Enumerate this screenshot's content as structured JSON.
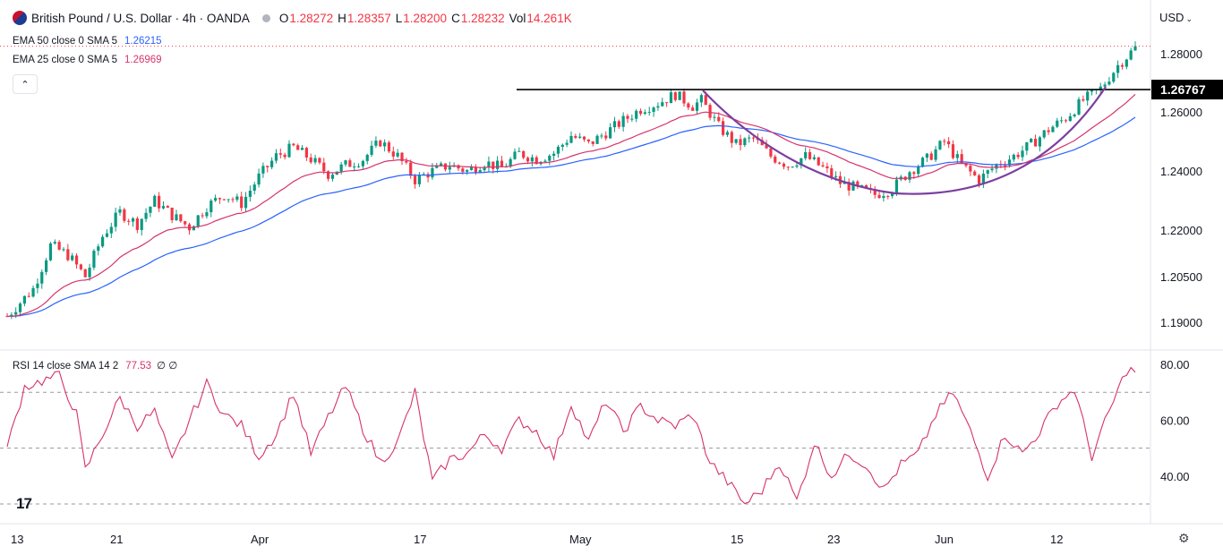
{
  "header": {
    "symbol": "British Pound / U.S. Dollar · 4h · OANDA",
    "open_key": "O",
    "open": "1.28272",
    "high_key": "H",
    "high": "1.28357",
    "low_key": "L",
    "low": "1.28200",
    "close_key": "C",
    "close": "1.28232",
    "vol_key": "Vol",
    "vol": "14.261K",
    "currency": "USD"
  },
  "indicators": {
    "ema50": {
      "label": "EMA 50 close 0 SMA 5",
      "value": "1.26215",
      "color": "#2962ff"
    },
    "ema25": {
      "label": "EMA 25 close 0 SMA 5",
      "value": "1.26969",
      "color": "#d6336c"
    },
    "rsi": {
      "label": "RSI 14 close SMA 14 2",
      "value": "77.53",
      "extra": "∅ ∅",
      "color": "#d6336c"
    }
  },
  "colors": {
    "up": "#089981",
    "down": "#f23645",
    "pattern": "#7b3fa0",
    "resistance": "#000000"
  },
  "chart_data": [
    {
      "type": "candlestick",
      "title": "British Pound / U.S. Dollar · 4h · OANDA",
      "y_ticks": [
        "1.28000",
        "1.26000",
        "1.24000",
        "1.22000",
        "1.20500",
        "1.19000"
      ],
      "x_ticks": [
        "13",
        "21",
        "Apr",
        "17",
        "May",
        "15",
        "23",
        "Jun",
        "12"
      ],
      "resistance_level": "1.26767",
      "annotations": [
        "horizontal resistance line at 1.26767",
        "cup (rounded bottom) pattern curve"
      ],
      "ema_series": [
        {
          "name": "EMA 50",
          "current": 1.26215
        },
        {
          "name": "EMA 25",
          "current": 1.26969
        }
      ],
      "close_path": [
        [
          0,
          1.192
        ],
        [
          6,
          1.201
        ],
        [
          10,
          1.215
        ],
        [
          14,
          1.212
        ],
        [
          18,
          1.205
        ],
        [
          22,
          1.218
        ],
        [
          26,
          1.226
        ],
        [
          30,
          1.222
        ],
        [
          34,
          1.23
        ],
        [
          38,
          1.225
        ],
        [
          42,
          1.221
        ],
        [
          46,
          1.228
        ],
        [
          50,
          1.232
        ],
        [
          54,
          1.229
        ],
        [
          58,
          1.238
        ],
        [
          62,
          1.245
        ],
        [
          66,
          1.248
        ],
        [
          70,
          1.244
        ],
        [
          74,
          1.239
        ],
        [
          78,
          1.242
        ],
        [
          82,
          1.244
        ],
        [
          86,
          1.25
        ],
        [
          90,
          1.245
        ],
        [
          94,
          1.237
        ],
        [
          98,
          1.24
        ],
        [
          102,
          1.242
        ],
        [
          106,
          1.24
        ],
        [
          110,
          1.243
        ],
        [
          114,
          1.241
        ],
        [
          118,
          1.246
        ],
        [
          122,
          1.244
        ],
        [
          126,
          1.246
        ],
        [
          130,
          1.252
        ],
        [
          134,
          1.249
        ],
        [
          138,
          1.253
        ],
        [
          142,
          1.257
        ],
        [
          146,
          1.261
        ],
        [
          150,
          1.263
        ],
        [
          154,
          1.266
        ],
        [
          158,
          1.262
        ],
        [
          160,
          1.264
        ],
        [
          164,
          1.255
        ],
        [
          168,
          1.249
        ],
        [
          172,
          1.251
        ],
        [
          176,
          1.245
        ],
        [
          180,
          1.242
        ],
        [
          184,
          1.245
        ],
        [
          188,
          1.241
        ],
        [
          192,
          1.236
        ],
        [
          196,
          1.234
        ],
        [
          200,
          1.232
        ],
        [
          204,
          1.234
        ],
        [
          208,
          1.24
        ],
        [
          212,
          1.244
        ],
        [
          216,
          1.25
        ],
        [
          220,
          1.242
        ],
        [
          224,
          1.237
        ],
        [
          228,
          1.242
        ],
        [
          232,
          1.245
        ],
        [
          236,
          1.249
        ],
        [
          240,
          1.254
        ],
        [
          244,
          1.258
        ],
        [
          248,
          1.264
        ],
        [
          252,
          1.268
        ],
        [
          256,
          1.276
        ],
        [
          260,
          1.282
        ]
      ]
    },
    {
      "type": "line",
      "title": "RSI 14 close SMA 14 2",
      "y_ticks": [
        "80.00",
        "60.00",
        "40.00"
      ],
      "guide_levels": [
        70,
        50,
        30
      ],
      "current": 77.53,
      "path": [
        [
          0,
          50
        ],
        [
          4,
          72
        ],
        [
          8,
          74
        ],
        [
          12,
          76
        ],
        [
          16,
          62
        ],
        [
          18,
          42
        ],
        [
          22,
          55
        ],
        [
          26,
          68
        ],
        [
          30,
          58
        ],
        [
          34,
          63
        ],
        [
          38,
          45
        ],
        [
          42,
          60
        ],
        [
          46,
          73
        ],
        [
          50,
          62
        ],
        [
          54,
          58
        ],
        [
          58,
          47
        ],
        [
          62,
          55
        ],
        [
          66,
          70
        ],
        [
          70,
          48
        ],
        [
          74,
          61
        ],
        [
          78,
          72
        ],
        [
          82,
          57
        ],
        [
          86,
          45
        ],
        [
          90,
          52
        ],
        [
          94,
          70
        ],
        [
          98,
          38
        ],
        [
          102,
          46
        ],
        [
          106,
          48
        ],
        [
          110,
          55
        ],
        [
          114,
          50
        ],
        [
          118,
          60
        ],
        [
          122,
          56
        ],
        [
          126,
          47
        ],
        [
          130,
          66
        ],
        [
          134,
          52
        ],
        [
          138,
          67
        ],
        [
          142,
          56
        ],
        [
          146,
          65
        ],
        [
          150,
          60
        ],
        [
          154,
          58
        ],
        [
          158,
          62
        ],
        [
          162,
          45
        ],
        [
          166,
          38
        ],
        [
          170,
          30
        ],
        [
          174,
          35
        ],
        [
          178,
          45
        ],
        [
          182,
          31
        ],
        [
          186,
          52
        ],
        [
          190,
          40
        ],
        [
          194,
          48
        ],
        [
          198,
          44
        ],
        [
          202,
          35
        ],
        [
          206,
          44
        ],
        [
          210,
          48
        ],
        [
          214,
          62
        ],
        [
          218,
          70
        ],
        [
          222,
          56
        ],
        [
          226,
          40
        ],
        [
          230,
          55
        ],
        [
          234,
          48
        ],
        [
          238,
          56
        ],
        [
          242,
          66
        ],
        [
          246,
          71
        ],
        [
          250,
          47
        ],
        [
          254,
          63
        ],
        [
          258,
          78
        ],
        [
          260,
          77.5
        ]
      ]
    }
  ]
}
